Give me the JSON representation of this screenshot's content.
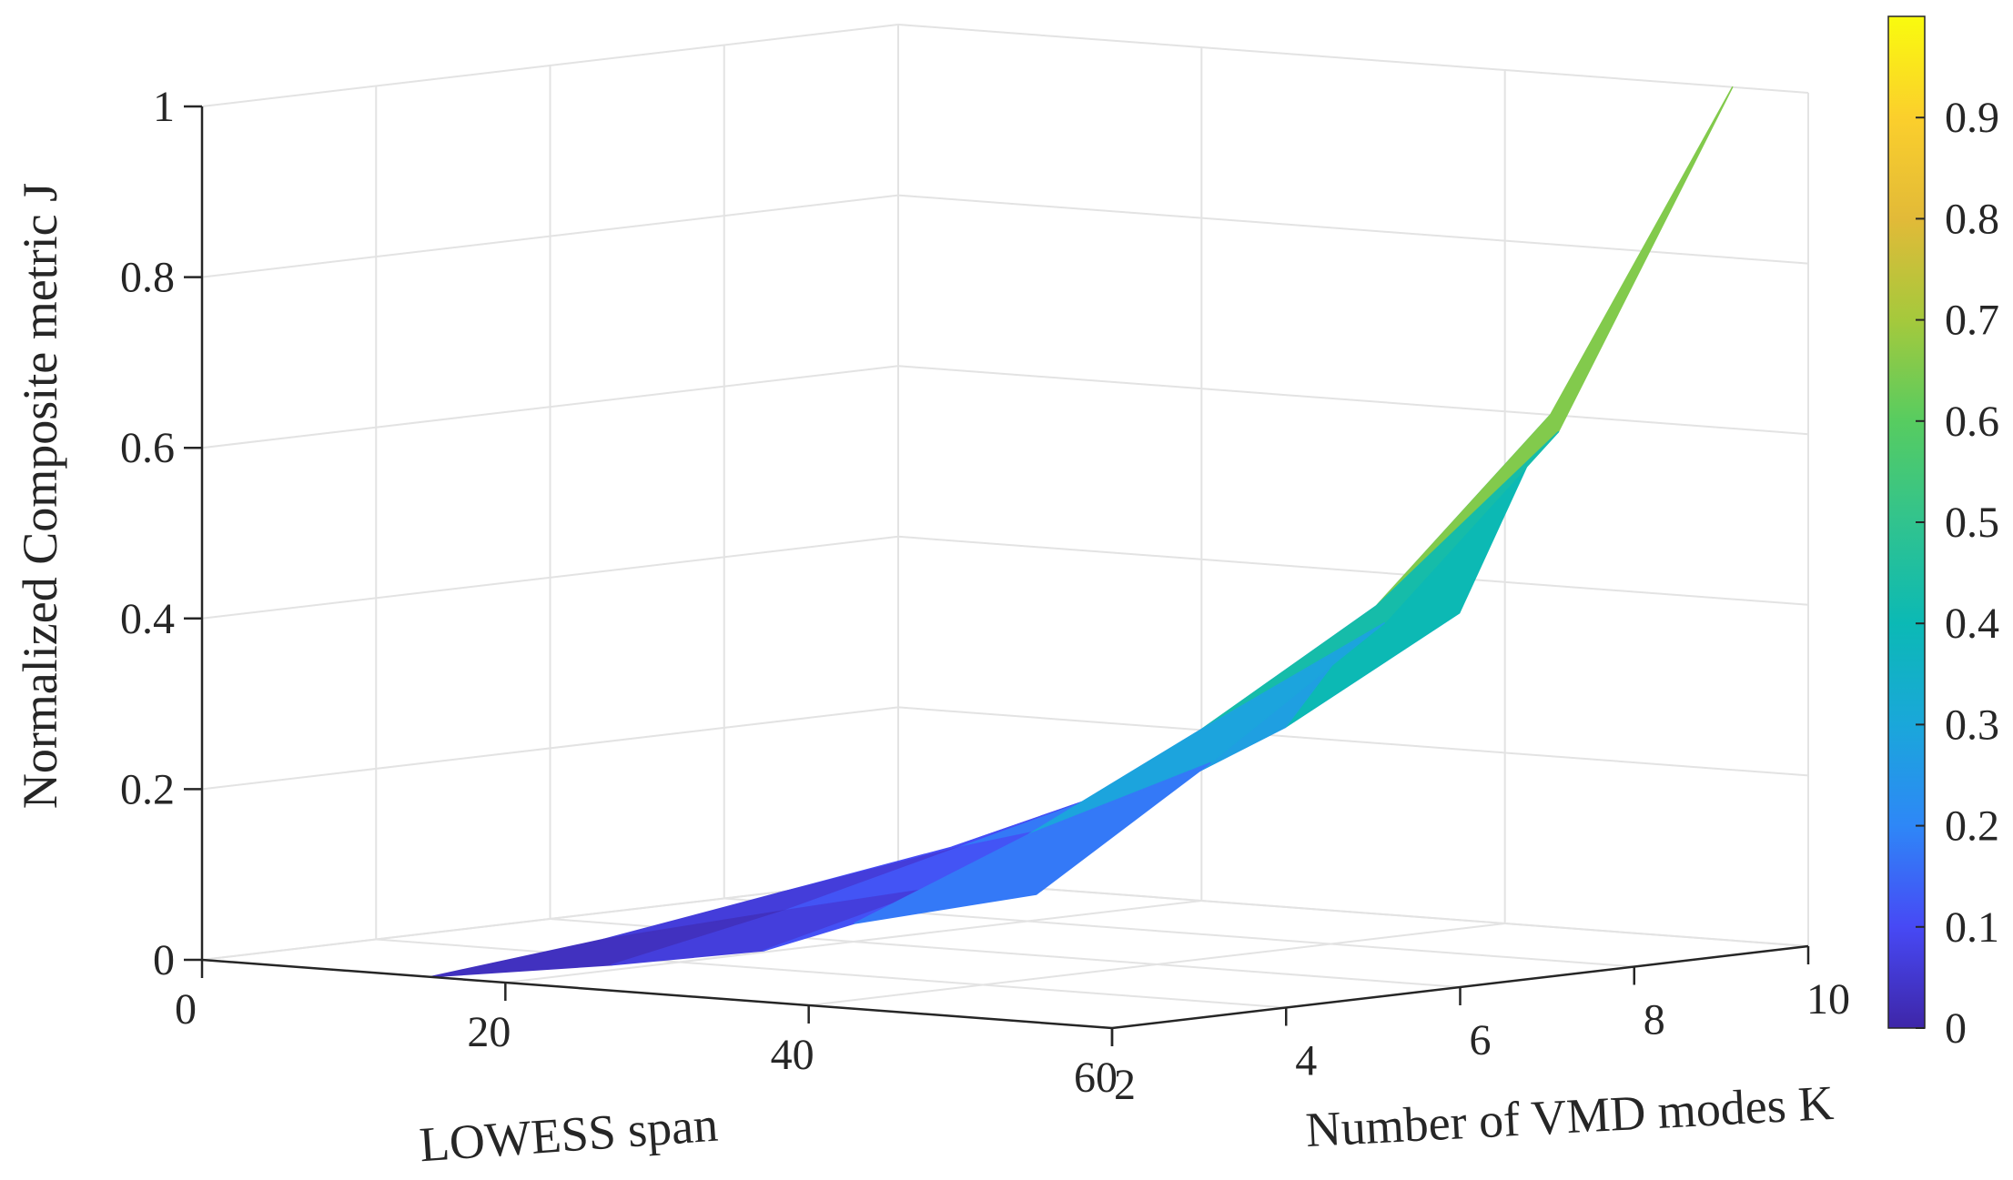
{
  "chart_data": {
    "type": "surface",
    "title": "",
    "xlabel": "LOWESS span",
    "ylabel": "Number of VMD modes K",
    "zlabel": "Normalized Composite metric J",
    "xlim": [
      0,
      60
    ],
    "ylim": [
      2,
      10
    ],
    "zlim": [
      0,
      1
    ],
    "xticks": [
      "0",
      "20",
      "40",
      "60"
    ],
    "yticks": [
      "2",
      "4",
      "6",
      "8",
      "10"
    ],
    "zticks": [
      "0",
      "0.2",
      "0.4",
      "0.6",
      "0.8",
      "1"
    ],
    "grid": true,
    "x": [
      15,
      27,
      37,
      43,
      55
    ],
    "y": [
      2,
      4,
      6,
      8,
      10
    ],
    "z": [
      [
        0.0,
        0.02,
        0.05,
        0.08,
        0.12
      ],
      [
        0.03,
        0.07,
        0.12,
        0.17,
        0.24
      ],
      [
        0.06,
        0.11,
        0.17,
        0.25,
        0.36
      ],
      [
        0.1,
        0.18,
        0.28,
        0.4,
        0.6
      ],
      [
        0.15,
        0.28,
        0.42,
        0.62,
        1.0
      ]
    ],
    "colorbar": {
      "colormap": "parula",
      "range": [
        0,
        1
      ],
      "ticks": [
        "0",
        "0.1",
        "0.2",
        "0.3",
        "0.4",
        "0.5",
        "0.6",
        "0.7",
        "0.8",
        "0.9"
      ]
    }
  }
}
